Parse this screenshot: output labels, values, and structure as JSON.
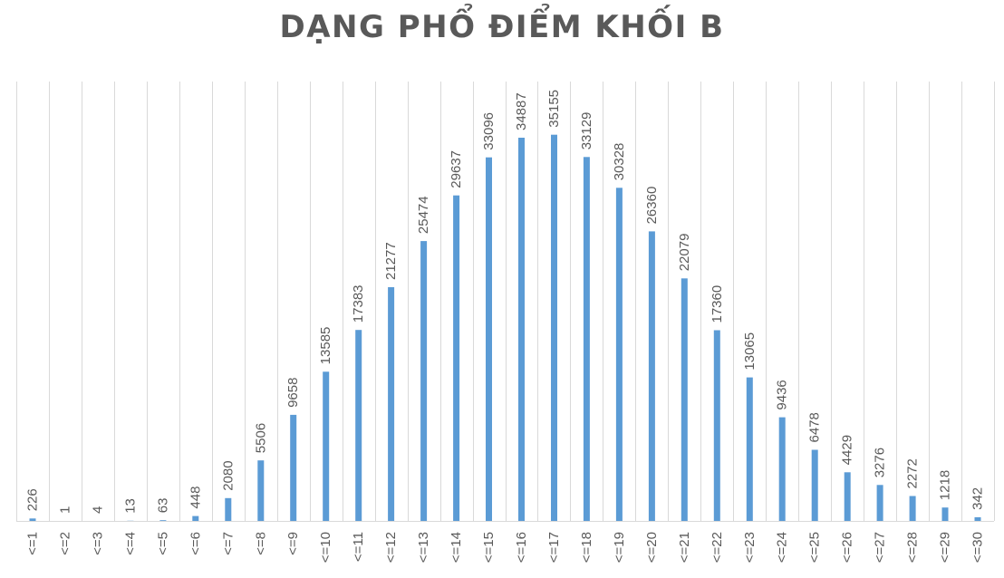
{
  "chart_data": {
    "type": "bar",
    "title": "DẠNG PHỔ ĐIỂM KHỐI B",
    "categories": [
      "<=1",
      "<=2",
      "<=3",
      "<=4",
      "<=5",
      "<=6",
      "<=7",
      "<=8",
      "<=9",
      "<=10",
      "<=11",
      "<=12",
      "<=13",
      "<=14",
      "<=15",
      "<=16",
      "<=17",
      "<=18",
      "<=19",
      "<=20",
      "<=21",
      "<=22",
      "<=23",
      "<=24",
      "<=25",
      "<=26",
      "<=27",
      "<=28",
      "<=29",
      "<=30"
    ],
    "values": [
      226,
      1,
      4,
      13,
      63,
      448,
      2080,
      5506,
      9658,
      13585,
      17383,
      21277,
      25474,
      29637,
      33096,
      34887,
      35155,
      33129,
      30328,
      26360,
      22079,
      17360,
      13065,
      9436,
      6478,
      4429,
      3276,
      2272,
      1218,
      342
    ],
    "data_labels": [
      "226",
      "1",
      "4",
      "13",
      "63",
      "448",
      "2080",
      "5506",
      "9658",
      "13585",
      "17383",
      "21277",
      "25474",
      "29637",
      "33096",
      "34887",
      "35155",
      "33129",
      "30328",
      "26360",
      "22079",
      "17360",
      "13065",
      "9436",
      "6478",
      "4429",
      "3276",
      "2272",
      "1218",
      "342"
    ],
    "xlabel": "",
    "ylabel": "",
    "ylim": [
      0,
      40000
    ],
    "grid": "vertical",
    "legend": "none",
    "colors": {
      "bar": "#5B9BD5",
      "grid": "#D9D9D9",
      "text": "#595959"
    }
  }
}
